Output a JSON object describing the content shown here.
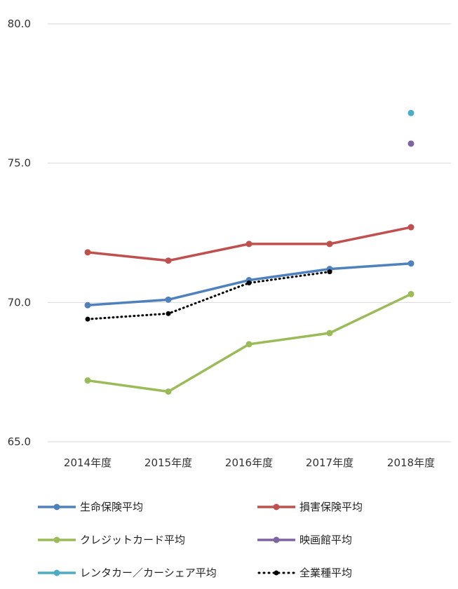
{
  "chart_data": {
    "type": "line",
    "categories": [
      "2014年度",
      "2015年度",
      "2016年度",
      "2017年度",
      "2018年度"
    ],
    "ylim": [
      65.0,
      80.0
    ],
    "yticks": [
      "80.0",
      "75.0",
      "70.0",
      "65.0"
    ],
    "grid": true,
    "legend_position": "bottom",
    "series": [
      {
        "name": "生命保険平均",
        "color": "#4f81bd",
        "style": "solid",
        "values": [
          69.9,
          70.1,
          70.8,
          71.2,
          71.4
        ]
      },
      {
        "name": "損害保険平均",
        "color": "#c0504d",
        "style": "solid",
        "values": [
          71.8,
          71.5,
          72.1,
          72.1,
          72.7
        ]
      },
      {
        "name": "クレジットカード平均",
        "color": "#9bbb59",
        "style": "solid",
        "values": [
          67.2,
          66.8,
          68.5,
          68.9,
          70.3
        ]
      },
      {
        "name": "映画館平均",
        "color": "#8064a2",
        "style": "solid",
        "values": [
          null,
          null,
          null,
          null,
          75.7
        ]
      },
      {
        "name": "レンタカー／カーシェア平均",
        "color": "#4bacc6",
        "style": "solid",
        "values": [
          null,
          null,
          null,
          null,
          76.8
        ]
      },
      {
        "name": "全業種平均",
        "color": "#000000",
        "style": "dotted",
        "values": [
          69.4,
          69.6,
          70.7,
          71.1,
          null
        ]
      }
    ]
  }
}
